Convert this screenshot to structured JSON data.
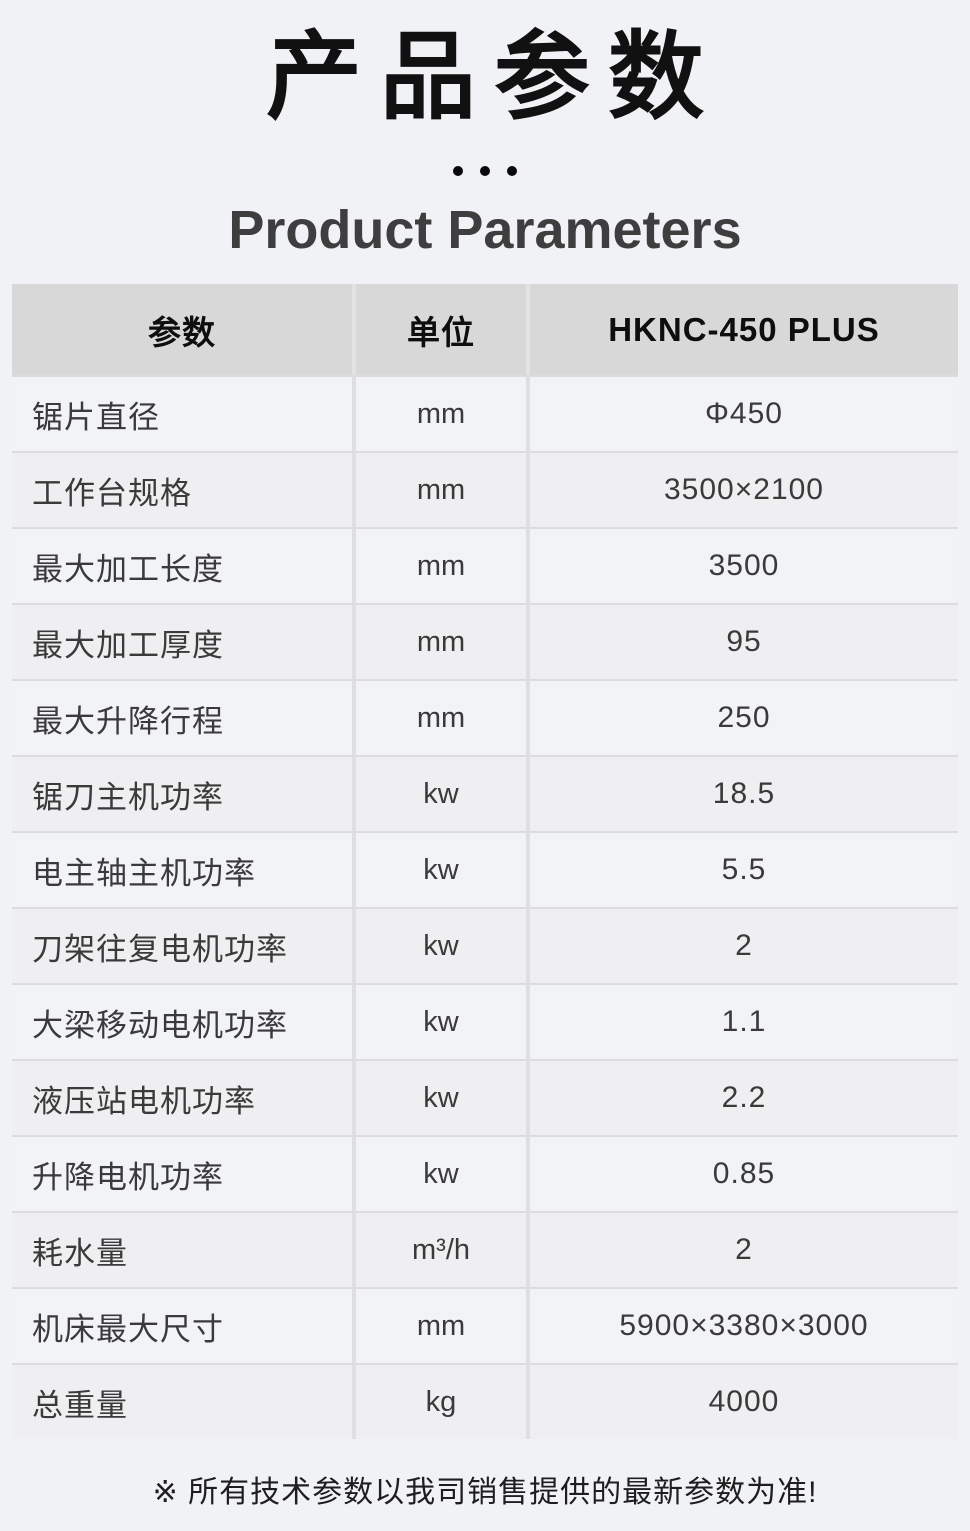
{
  "page": {
    "title": "产品参数",
    "subtitle": "Product Parameters",
    "footnote": "※ 所有技术参数以我司销售提供的最新参数为准!"
  },
  "colors": {
    "page_background": "#f1f2f6",
    "table_header_background": "#d8d8d8",
    "row_odd_background": "#f2f3f7",
    "row_even_background": "#efeff1",
    "title_text": "#111111",
    "body_text": "#3a3a3a"
  },
  "table": {
    "columns": [
      "参数",
      "单位",
      "HKNC-450 PLUS"
    ],
    "rows": [
      {
        "name": "锯片直径",
        "unit": "mm",
        "value": "Φ450"
      },
      {
        "name": "工作台规格",
        "unit": "mm",
        "value": "3500×2100"
      },
      {
        "name": "最大加工长度",
        "unit": "mm",
        "value": "3500"
      },
      {
        "name": "最大加工厚度",
        "unit": "mm",
        "value": "95"
      },
      {
        "name": "最大升降行程",
        "unit": "mm",
        "value": "250"
      },
      {
        "name": "锯刀主机功率",
        "unit": "kw",
        "value": "18.5"
      },
      {
        "name": "电主轴主机功率",
        "unit": "kw",
        "value": "5.5"
      },
      {
        "name": "刀架往复电机功率",
        "unit": "kw",
        "value": "2"
      },
      {
        "name": "大梁移动电机功率",
        "unit": "kw",
        "value": "1.1"
      },
      {
        "name": "液压站电机功率",
        "unit": "kw",
        "value": "2.2"
      },
      {
        "name": "升降电机功率",
        "unit": "kw",
        "value": "0.85"
      },
      {
        "name": "耗水量",
        "unit": "m³/h",
        "value": "2"
      },
      {
        "name": "机床最大尺寸",
        "unit": "mm",
        "value": "5900×3380×3000"
      },
      {
        "name": "总重量",
        "unit": "kg",
        "value": "4000"
      }
    ]
  }
}
